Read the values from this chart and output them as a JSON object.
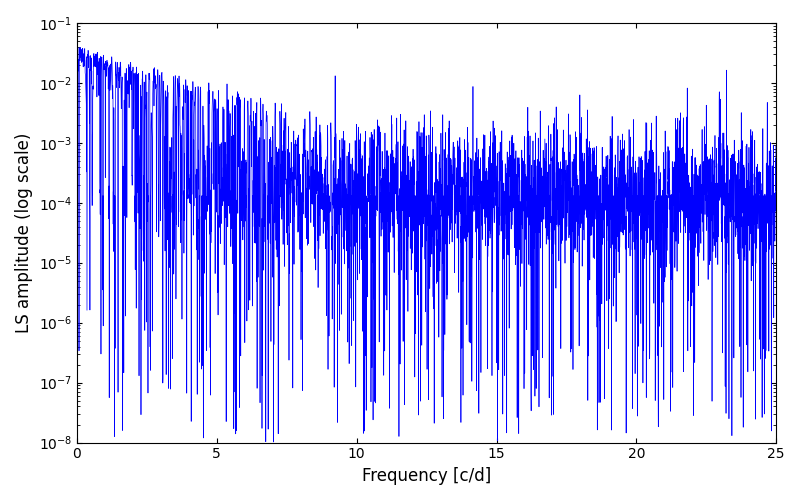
{
  "xlabel": "Frequency [c/d]",
  "ylabel": "LS amplitude (log scale)",
  "line_color": "#0000ff",
  "xlim": [
    0,
    25
  ],
  "ylim": [
    1e-08,
    0.1
  ],
  "xticks": [
    0,
    5,
    10,
    15,
    20,
    25
  ],
  "figsize": [
    8.0,
    5.0
  ],
  "dpi": 100,
  "seed": 12345,
  "n_points": 5000,
  "freq_max": 25.0,
  "noise_floor": 0.00015,
  "line_width": 0.5
}
